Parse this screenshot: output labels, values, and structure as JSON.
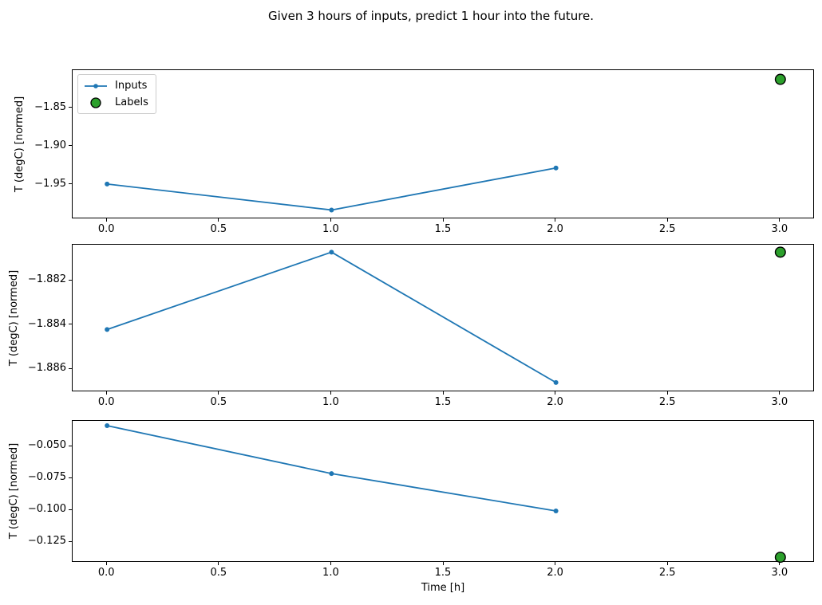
{
  "figure": {
    "title": "Given 3 hours of inputs, predict 1 hour into the future.",
    "background": "#ffffff"
  },
  "legend": {
    "position": "upper-left-of-first-subplot",
    "items": [
      {
        "label": "Inputs",
        "marker": "line-with-dot",
        "color": "#1f77b4"
      },
      {
        "label": "Labels",
        "marker": "filled-circle",
        "color": "#2ca02c",
        "edge_color": "#000000"
      }
    ]
  },
  "chart_data": {
    "type": "line",
    "title": "Given 3 hours of inputs, predict 1 hour into the future.",
    "xlabel": "Time [h]",
    "grid": false,
    "xlim": [
      -0.15,
      3.15
    ],
    "xticks": [
      0,
      0.5,
      1,
      1.5,
      2,
      2.5,
      3
    ],
    "xtick_labels": [
      "0.0",
      "0.5",
      "1.0",
      "1.5",
      "2.0",
      "2.5",
      "3.0"
    ],
    "subplots": [
      {
        "ylabel": "T (degC) [normed]",
        "ylim": [
          -1.994,
          -1.801
        ],
        "yticks": [
          -1.85,
          -1.9,
          -1.95
        ],
        "ytick_labels": [
          "−1.85",
          "−1.90",
          "−1.95"
        ],
        "series": [
          {
            "name": "Inputs",
            "type": "line",
            "x": [
              0,
              1,
              2
            ],
            "y": [
              -1.949,
              -1.983,
              -1.928
            ]
          },
          {
            "name": "Labels",
            "type": "scatter",
            "x": [
              3
            ],
            "y": [
              -1.812
            ]
          }
        ]
      },
      {
        "ylabel": "T (degC) [normed]",
        "ylim": [
          -1.887,
          -1.8804
        ],
        "yticks": [
          -1.882,
          -1.884,
          -1.886
        ],
        "ytick_labels": [
          "−1.882",
          "−1.884",
          "−1.886"
        ],
        "series": [
          {
            "name": "Inputs",
            "type": "line",
            "x": [
              0,
              1,
              2
            ],
            "y": [
              -1.8842,
              -1.8807,
              -1.8866
            ]
          },
          {
            "name": "Labels",
            "type": "scatter",
            "x": [
              3
            ],
            "y": [
              -1.8807
            ]
          }
        ]
      },
      {
        "ylabel": "T (degC) [normed]",
        "ylim": [
          -0.1404,
          -0.0304
        ],
        "yticks": [
          -0.05,
          -0.075,
          -0.1,
          -0.125
        ],
        "ytick_labels": [
          "−0.050",
          "−0.075",
          "−0.100",
          "−0.125"
        ],
        "series": [
          {
            "name": "Inputs",
            "type": "line",
            "x": [
              0,
              1,
              2
            ],
            "y": [
              -0.0335,
              -0.0711,
              -0.1004
            ]
          },
          {
            "name": "Labels",
            "type": "scatter",
            "x": [
              3
            ],
            "y": [
              -0.1367
            ]
          }
        ]
      }
    ]
  },
  "colors": {
    "inputs": "#1f77b4",
    "labels": "#2ca02c",
    "label_edge": "#000000",
    "spine": "#000000",
    "text": "#000000"
  }
}
